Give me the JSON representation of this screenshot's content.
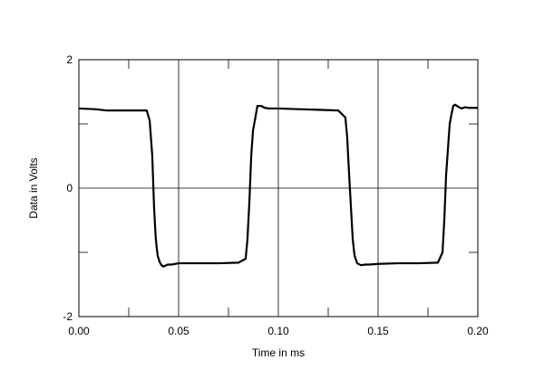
{
  "chart_data": {
    "type": "line",
    "title": "",
    "xlabel": "Time in ms",
    "ylabel": "Data in Volts",
    "xlim": [
      0.0,
      0.2
    ],
    "ylim": [
      -2,
      2
    ],
    "x_major_ticks": [
      0.0,
      0.05,
      0.1,
      0.15,
      0.2
    ],
    "x_tick_labels": [
      "0.00",
      "0.05",
      "0.10",
      "0.15",
      "0.20"
    ],
    "y_major_ticks": [
      -2,
      0,
      2
    ],
    "y_tick_labels": [
      "-2",
      "0",
      "2"
    ],
    "x_minor_ticks": [
      0.025,
      0.075,
      0.125,
      0.175
    ],
    "y_minor_ticks": [
      -1,
      1
    ],
    "grid": true,
    "legend": "none",
    "line_color": "#000000",
    "series": [
      {
        "x": [
          0.0,
          0.008,
          0.0136,
          0.02,
          0.03,
          0.034,
          0.0355,
          0.0368,
          0.0377,
          0.0382,
          0.0386,
          0.0391,
          0.0395,
          0.0405,
          0.0414,
          0.0423,
          0.0432,
          0.0445,
          0.0464,
          0.05,
          0.06,
          0.07,
          0.08,
          0.0836,
          0.0845,
          0.0855,
          0.0864,
          0.0873,
          0.0882,
          0.0895,
          0.0914,
          0.0932,
          0.0955,
          0.1,
          0.11,
          0.12,
          0.13,
          0.1336,
          0.1345,
          0.1355,
          0.1364,
          0.1373,
          0.1382,
          0.1395,
          0.1414,
          0.1436,
          0.1455,
          0.15,
          0.16,
          0.17,
          0.18,
          0.1823,
          0.1832,
          0.1841,
          0.185,
          0.1859,
          0.1868,
          0.1877,
          0.1886,
          0.19,
          0.1918,
          0.1936,
          0.1955,
          0.2
        ],
        "y": [
          1.24,
          1.23,
          1.21,
          1.21,
          1.21,
          1.21,
          1.05,
          0.5,
          -0.3,
          -0.6,
          -0.8,
          -0.95,
          -1.05,
          -1.15,
          -1.2,
          -1.22,
          -1.21,
          -1.19,
          -1.19,
          -1.17,
          -1.17,
          -1.17,
          -1.16,
          -1.1,
          -0.8,
          -0.2,
          0.5,
          0.9,
          1.05,
          1.28,
          1.28,
          1.25,
          1.24,
          1.24,
          1.23,
          1.22,
          1.21,
          1.1,
          0.8,
          0.2,
          -0.3,
          -0.8,
          -1.05,
          -1.17,
          -1.2,
          -1.19,
          -1.19,
          -1.18,
          -1.17,
          -1.17,
          -1.16,
          -1.0,
          -0.5,
          0.2,
          0.6,
          1.0,
          1.15,
          1.28,
          1.3,
          1.27,
          1.24,
          1.26,
          1.25,
          1.25
        ]
      }
    ]
  }
}
